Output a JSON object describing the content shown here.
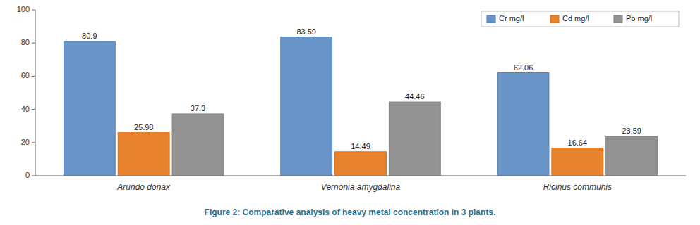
{
  "chart_data": {
    "type": "bar",
    "title": "Figure 2: Comparative analysis of heavy metal concentration in 3 plants.",
    "categories": [
      "Arundo donax",
      "Vernonia amygdalina",
      "Ricinus communis"
    ],
    "series": [
      {
        "name": "Cr mg/l",
        "color": "#4f81bd",
        "values": [
          80.9,
          83.59,
          62.06
        ]
      },
      {
        "name": "Cd mg/l",
        "color": "#e36c09",
        "values": [
          25.98,
          14.49,
          16.64
        ]
      },
      {
        "name": "Pb mg/l",
        "color": "#808080",
        "values": [
          37.3,
          44.46,
          23.59
        ]
      }
    ],
    "ylim": [
      0,
      100
    ],
    "yticks": [
      0,
      20,
      40,
      60,
      80,
      100
    ],
    "grid": false,
    "legend": "upper right",
    "data_labels": true
  }
}
